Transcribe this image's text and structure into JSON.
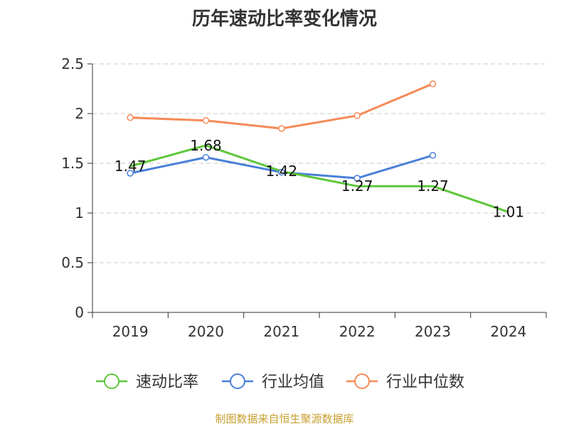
{
  "chart_data": {
    "type": "line",
    "title": "历年速动比率变化情况",
    "categories": [
      "2019",
      "2020",
      "2021",
      "2022",
      "2023",
      "2024"
    ],
    "ylim": [
      0,
      2.5
    ],
    "yticks": [
      "0",
      "0.5",
      "1",
      "1.5",
      "2",
      "2.5"
    ],
    "grid": true,
    "legend_position": "bottom",
    "series": [
      {
        "name": "速动比率",
        "color": "#5ec73a",
        "values": [
          1.47,
          1.68,
          1.42,
          1.27,
          1.27,
          1.01
        ],
        "labels": [
          "1.47",
          "1.68",
          "1.42",
          "1.27",
          "1.27",
          "1.01"
        ]
      },
      {
        "name": "行业均值",
        "color": "#4a80d8",
        "values": [
          1.4,
          1.56,
          1.41,
          1.35,
          1.58,
          null
        ]
      },
      {
        "name": "行业中位数",
        "color": "#f58a57",
        "values": [
          1.96,
          1.93,
          1.85,
          1.98,
          2.3,
          null
        ]
      }
    ]
  },
  "source_text": "制图数据来自恒生聚源数据库"
}
